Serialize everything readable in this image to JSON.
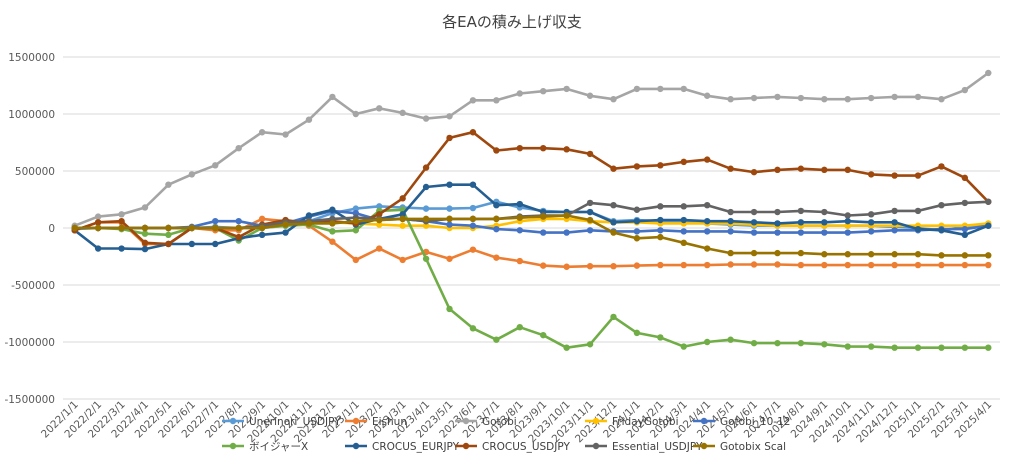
{
  "chart_data": {
    "type": "line",
    "title": "各EAの積み上げ収支",
    "xlabel": "",
    "ylabel": "",
    "ylim": [
      -1500000,
      1500000
    ],
    "yticks": [
      -1500000,
      -1000000,
      -500000,
      0,
      500000,
      1000000,
      1500000
    ],
    "ytick_labels": [
      "-1500000",
      "-1000000",
      "-500000",
      "0",
      "500000",
      "1000000",
      "1500000"
    ],
    "grid": true,
    "legend_position": "bottom",
    "categories": [
      "2022/1/1",
      "2022/2/1",
      "2022/3/1",
      "2022/4/1",
      "2022/5/1",
      "2022/6/1",
      "2022/7/1",
      "2022/8/1",
      "2022/9/1",
      "2022/10/1",
      "2022/11/1",
      "2022/12/1",
      "2023/1/1",
      "2023/2/1",
      "2023/3/1",
      "2023/4/1",
      "2023/5/1",
      "2023/6/1",
      "2023/7/1",
      "2023/8/1",
      "2023/9/1",
      "2023/10/1",
      "2023/11/1",
      "2023/12/1",
      "2024/1/1",
      "2024/2/1",
      "2024/3/1",
      "2024/4/1",
      "2024/5/1",
      "2024/6/1",
      "2024/7/1",
      "2024/8/1",
      "2024/9/1",
      "2024/10/1",
      "2024/11/1",
      "2024/12/1",
      "2025/1/1",
      "2025/2/1",
      "2025/3/1",
      "2025/4/1"
    ],
    "series": [
      {
        "name": "Unerinori_USDJPY",
        "color": "#5B9BD5",
        "values": [
          -10000,
          0,
          0,
          0,
          0,
          0,
          10000,
          0,
          0,
          20000,
          60000,
          130000,
          170000,
          190000,
          180000,
          170000,
          170000,
          175000,
          230000,
          180000,
          150000,
          140000,
          140000,
          60000,
          70000,
          60000,
          50000,
          40000,
          30000,
          20000,
          20000,
          20000,
          20000,
          20000,
          20000,
          10000,
          0,
          -20000,
          10000,
          30000
        ]
      },
      {
        "name": "Eishun",
        "color": "#ED7D31",
        "values": [
          -20000,
          50000,
          50000,
          -140000,
          -140000,
          0,
          -20000,
          -20000,
          80000,
          60000,
          20000,
          -120000,
          -280000,
          -180000,
          -280000,
          -210000,
          -270000,
          -190000,
          -260000,
          -290000,
          -330000,
          -340000,
          -335000,
          -335000,
          -330000,
          -325000,
          -325000,
          -325000,
          -320000,
          -320000,
          -320000,
          -325000,
          -325000,
          -325000,
          -325000,
          -325000,
          -325000,
          -325000,
          -325000,
          -325000
        ]
      },
      {
        "name": "Gotobi",
        "color": "#A5A5A5",
        "values": [
          20000,
          100000,
          120000,
          180000,
          380000,
          470000,
          550000,
          700000,
          840000,
          820000,
          950000,
          1150000,
          1000000,
          1050000,
          1010000,
          960000,
          980000,
          1120000,
          1120000,
          1180000,
          1200000,
          1220000,
          1160000,
          1130000,
          1220000,
          1220000,
          1220000,
          1160000,
          1130000,
          1140000,
          1150000,
          1140000,
          1130000,
          1130000,
          1140000,
          1150000,
          1150000,
          1130000,
          1210000,
          1360000
        ]
      },
      {
        "name": "FridayGotobi",
        "color": "#FFC000",
        "values": [
          0,
          0,
          0,
          0,
          0,
          0,
          0,
          0,
          20000,
          40000,
          60000,
          50000,
          40000,
          30000,
          20000,
          20000,
          0,
          0,
          20000,
          60000,
          80000,
          80000,
          60000,
          50000,
          50000,
          40000,
          40000,
          40000,
          40000,
          30000,
          20000,
          20000,
          20000,
          20000,
          20000,
          20000,
          20000,
          20000,
          20000,
          40000
        ]
      },
      {
        "name": "Gotobi_10-12",
        "color": "#4472C4",
        "values": [
          0,
          0,
          0,
          0,
          0,
          10000,
          60000,
          60000,
          20000,
          40000,
          100000,
          150000,
          130000,
          70000,
          80000,
          60000,
          30000,
          20000,
          -10000,
          -20000,
          -40000,
          -40000,
          -20000,
          -30000,
          -30000,
          -20000,
          -30000,
          -30000,
          -30000,
          -40000,
          -40000,
          -40000,
          -40000,
          -40000,
          -30000,
          -20000,
          -20000,
          -10000,
          -10000,
          20000
        ]
      },
      {
        "name": "ボイジャーX",
        "color": "#70AD47",
        "values": [
          0,
          0,
          -10000,
          -50000,
          -60000,
          0,
          0,
          -110000,
          0,
          20000,
          30000,
          -30000,
          -20000,
          150000,
          160000,
          -270000,
          -710000,
          -880000,
          -980000,
          -870000,
          -940000,
          -1050000,
          -1020000,
          -780000,
          -920000,
          -960000,
          -1040000,
          -1000000,
          -980000,
          -1010000,
          -1010000,
          -1010000,
          -1020000,
          -1040000,
          -1040000,
          -1050000,
          -1050000,
          -1050000,
          -1050000,
          -1050000
        ]
      },
      {
        "name": "CROCUS_EURJPY",
        "color": "#255E91",
        "values": [
          -20000,
          -180000,
          -180000,
          -185000,
          -140000,
          -140000,
          -140000,
          -90000,
          -60000,
          -40000,
          110000,
          160000,
          30000,
          80000,
          120000,
          360000,
          380000,
          380000,
          200000,
          210000,
          140000,
          140000,
          140000,
          50000,
          60000,
          70000,
          70000,
          60000,
          60000,
          50000,
          40000,
          50000,
          50000,
          60000,
          50000,
          50000,
          -10000,
          -20000,
          -60000,
          20000
        ]
      },
      {
        "name": "CROCUS_USDJPY",
        "color": "#9E480E",
        "values": [
          -20000,
          50000,
          60000,
          -130000,
          -140000,
          0,
          0,
          -80000,
          30000,
          70000,
          40000,
          60000,
          40000,
          120000,
          260000,
          530000,
          790000,
          840000,
          680000,
          700000,
          700000,
          690000,
          650000,
          520000,
          540000,
          550000,
          580000,
          600000,
          520000,
          490000,
          510000,
          520000,
          510000,
          510000,
          470000,
          460000,
          460000,
          540000,
          440000,
          230000
        ]
      },
      {
        "name": "Essential_USDJPY",
        "color": "#636363",
        "values": [
          0,
          0,
          0,
          0,
          0,
          0,
          0,
          0,
          20000,
          50000,
          60000,
          80000,
          90000,
          80000,
          80000,
          60000,
          80000,
          80000,
          80000,
          100000,
          110000,
          110000,
          220000,
          200000,
          160000,
          190000,
          190000,
          200000,
          140000,
          140000,
          140000,
          150000,
          140000,
          110000,
          120000,
          150000,
          150000,
          200000,
          220000,
          230000
        ]
      },
      {
        "name": "Gotobix Scal",
        "color": "#997300",
        "values": [
          0,
          0,
          0,
          0,
          0,
          0,
          0,
          0,
          0,
          30000,
          40000,
          40000,
          60000,
          70000,
          80000,
          80000,
          80000,
          80000,
          80000,
          90000,
          100000,
          110000,
          70000,
          -40000,
          -90000,
          -80000,
          -130000,
          -180000,
          -220000,
          -220000,
          -220000,
          -220000,
          -230000,
          -230000,
          -230000,
          -230000,
          -230000,
          -240000,
          -240000,
          -240000
        ]
      }
    ]
  }
}
